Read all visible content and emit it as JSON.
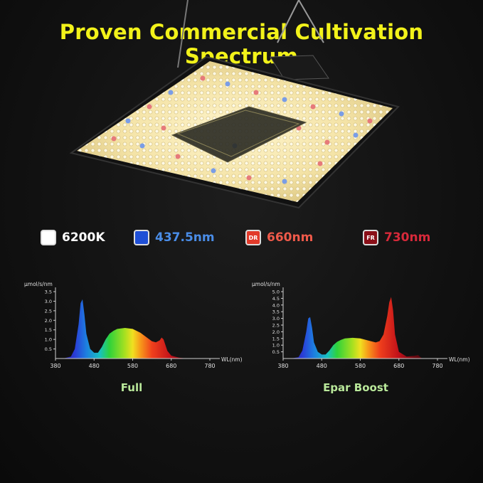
{
  "title": "Proven Commercial Cultivation Spectrum",
  "legend": [
    {
      "code": "",
      "label": "6200K",
      "color": "#ffffff",
      "label_color": "#ffffff"
    },
    {
      "code": "",
      "label": "437.5nm",
      "color": "#1f4fd6",
      "label_color": "#4a8de8"
    },
    {
      "code": "DR",
      "label": "660nm",
      "color": "#e23a2a",
      "label_color": "#ef5a4a"
    },
    {
      "code": "FR",
      "label": "730nm",
      "color": "#8a0f18",
      "label_color": "#d7293a"
    }
  ],
  "chart_data": [
    {
      "type": "area",
      "caption": "Full",
      "ylabel": "μmol/s/nm",
      "xlabel": "WL(nm)",
      "x_ticks": [
        380,
        480,
        580,
        680,
        780
      ],
      "y_ticks": [
        "0.5",
        "1.0",
        "1.5",
        "2.0",
        "2.5",
        "3.0",
        "3.5"
      ],
      "xlim": [
        380,
        780
      ],
      "ylim": [
        0,
        3.5
      ],
      "x": [
        400,
        420,
        430,
        440,
        445,
        450,
        455,
        460,
        470,
        480,
        490,
        500,
        510,
        520,
        530,
        540,
        560,
        580,
        600,
        620,
        630,
        640,
        650,
        655,
        660,
        670,
        680,
        700,
        720
      ],
      "values": [
        0,
        0.1,
        0.5,
        1.8,
        2.9,
        3.1,
        2.3,
        1.3,
        0.5,
        0.3,
        0.3,
        0.6,
        1.0,
        1.3,
        1.45,
        1.55,
        1.6,
        1.55,
        1.35,
        1.05,
        0.9,
        0.85,
        0.95,
        1.1,
        1.0,
        0.4,
        0.15,
        0.05,
        0
      ]
    },
    {
      "type": "area",
      "caption": "Epar Boost",
      "ylabel": "μmol/s/nm",
      "xlabel": "WL(nm)",
      "x_ticks": [
        380,
        480,
        580,
        680,
        780
      ],
      "y_ticks": [
        "0.5",
        "1.0",
        "1.5",
        "2.0",
        "2.5",
        "3.0",
        "3.5",
        "4.0",
        "4.5",
        "5.0"
      ],
      "xlim": [
        380,
        780
      ],
      "ylim": [
        0,
        5.0
      ],
      "x": [
        400,
        420,
        430,
        440,
        445,
        450,
        455,
        460,
        470,
        480,
        490,
        500,
        510,
        520,
        530,
        540,
        560,
        580,
        600,
        620,
        630,
        640,
        650,
        655,
        660,
        665,
        670,
        680,
        700,
        720,
        730,
        740
      ],
      "values": [
        0,
        0.1,
        0.6,
        2.0,
        3.0,
        3.1,
        2.3,
        1.2,
        0.5,
        0.3,
        0.3,
        0.6,
        1.0,
        1.25,
        1.4,
        1.5,
        1.55,
        1.5,
        1.35,
        1.2,
        1.3,
        1.8,
        3.2,
        4.2,
        4.6,
        3.6,
        1.8,
        0.5,
        0.15,
        0.2,
        0.25,
        0
      ]
    }
  ]
}
